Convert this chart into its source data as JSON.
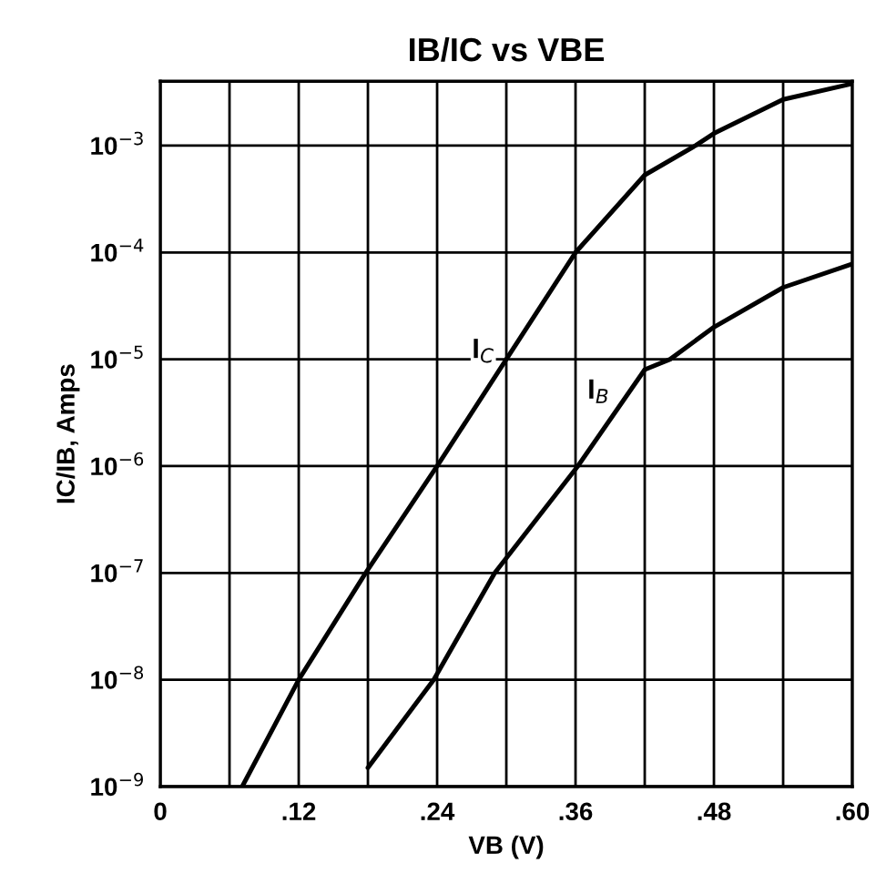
{
  "chart_data": {
    "type": "line",
    "title": "IB/IC vs VBE",
    "xlabel": "VB (V)",
    "ylabel": "IC/IB, Amps",
    "log": "y",
    "grid": true,
    "marker": "none",
    "line_style": "solid",
    "xlim": [
      0,
      0.6
    ],
    "xticks": [
      {
        "value": 0,
        "label": "0"
      },
      {
        "value": 0.06,
        "label": null
      },
      {
        "value": 0.12,
        "label": ".12"
      },
      {
        "value": 0.18,
        "label": null
      },
      {
        "value": 0.24,
        "label": ".24"
      },
      {
        "value": 0.3,
        "label": null
      },
      {
        "value": 0.36,
        "label": ".36"
      },
      {
        "value": 0.42,
        "label": null
      },
      {
        "value": 0.48,
        "label": ".48"
      },
      {
        "value": 0.54,
        "label": null
      },
      {
        "value": 0.6,
        "label": ".60"
      }
    ],
    "ylim": [
      1e-09,
      0.004
    ],
    "yticks": [
      {
        "value": 1e-09,
        "label": "10$^{−9}$"
      },
      {
        "value": 1e-08,
        "label": "10$^{−8}$"
      },
      {
        "value": 1e-07,
        "label": "10$^{−7}$"
      },
      {
        "value": 1e-06,
        "label": "10$^{−6}$"
      },
      {
        "value": 1e-05,
        "label": "10$^{−5}$"
      },
      {
        "value": 0.0001,
        "label": "10$^{−4}$"
      },
      {
        "value": 0.001,
        "label": "10$^{−3}$"
      }
    ],
    "series": [
      {
        "color": "#000000",
        "x": [
          0.071,
          0.12,
          0.178,
          0.24,
          0.3,
          0.36,
          0.42,
          0.464,
          0.48,
          0.54,
          0.6
        ],
        "values": [
          1e-09,
          1e-08,
          1e-07,
          1e-06,
          1e-05,
          0.0001,
          0.00053,
          0.001,
          0.0013,
          0.0027,
          0.0038
        ]
      },
      {
        "color": "#000000",
        "x": [
          0.18,
          0.237,
          0.29,
          0.362,
          0.42,
          0.442,
          0.48,
          0.54,
          0.6
        ],
        "values": [
          1.5e-09,
          1e-08,
          1e-07,
          1e-06,
          8e-06,
          1e-05,
          2e-05,
          4.7e-05,
          7.8e-05
        ]
      }
    ],
    "annotations": [
      {
        "text": "I$_{C}$",
        "x": 0.28,
        "y": 1.2e-05
      },
      {
        "text": "I$_{B}$",
        "x": 0.38,
        "y": 5e-06
      }
    ]
  }
}
